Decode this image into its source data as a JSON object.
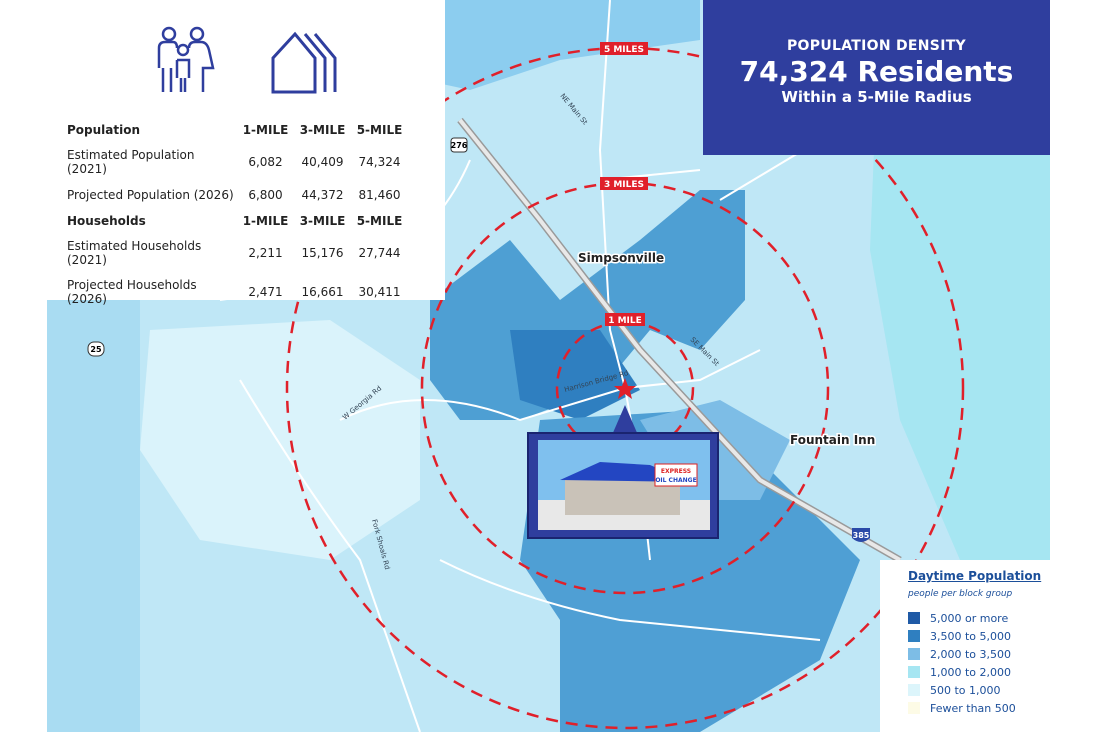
{
  "header": {
    "line1": "POPULATION DENSITY",
    "line2": "74,324 Residents",
    "line3": "Within a 5-Mile Radius",
    "bg": "#2f3e9e"
  },
  "icons": [
    "family-icon",
    "houses-icon"
  ],
  "table": {
    "sections": [
      {
        "title": "Population",
        "cols": [
          "1-MILE",
          "3-MILE",
          "5-MILE"
        ],
        "rows": [
          {
            "label": "Estimated Population (2021)",
            "values": [
              "6,082",
              "40,409",
              "74,324"
            ]
          },
          {
            "label": "Projected Population (2026)",
            "values": [
              "6,800",
              "44,372",
              "81,460"
            ]
          }
        ]
      },
      {
        "title": "Households",
        "cols": [
          "1-MILE",
          "3-MILE",
          "5-MILE"
        ],
        "rows": [
          {
            "label": "Estimated Households (2021)",
            "values": [
              "2,211",
              "15,176",
              "27,744"
            ]
          },
          {
            "label": "Projected Households (2026)",
            "values": [
              "2,471",
              "16,661",
              "30,411"
            ]
          }
        ]
      }
    ]
  },
  "map": {
    "radius_labels": [
      "1 MILE",
      "3 MILES",
      "5 MILES"
    ],
    "places": [
      "Simpsonville",
      "Fountain Inn"
    ],
    "roads": [
      "NE Main St",
      "SE Main St",
      "W Georgia Rd",
      "Fork Shoals Rd",
      "Harrison Bridge Rd"
    ],
    "route_shields": [
      "276",
      "25",
      "385"
    ],
    "ring_color": "#e0202a",
    "storefront_sign": "EXPRESS OIL CHANGE"
  },
  "legend": {
    "title": "Daytime Population",
    "subtitle": "people per block group",
    "items": [
      {
        "label": "5,000 or more",
        "color": "#1f5aa6"
      },
      {
        "label": "3,500 to 5,000",
        "color": "#2f7fc0"
      },
      {
        "label": "2,000 to 3,500",
        "color": "#7dbde6"
      },
      {
        "label": "1,000 to 2,000",
        "color": "#a6e6f2"
      },
      {
        "label": "500 to 1,000",
        "color": "#dcf5fb"
      },
      {
        "label": "Fewer than 500",
        "color": "#fdfbe6"
      }
    ]
  }
}
